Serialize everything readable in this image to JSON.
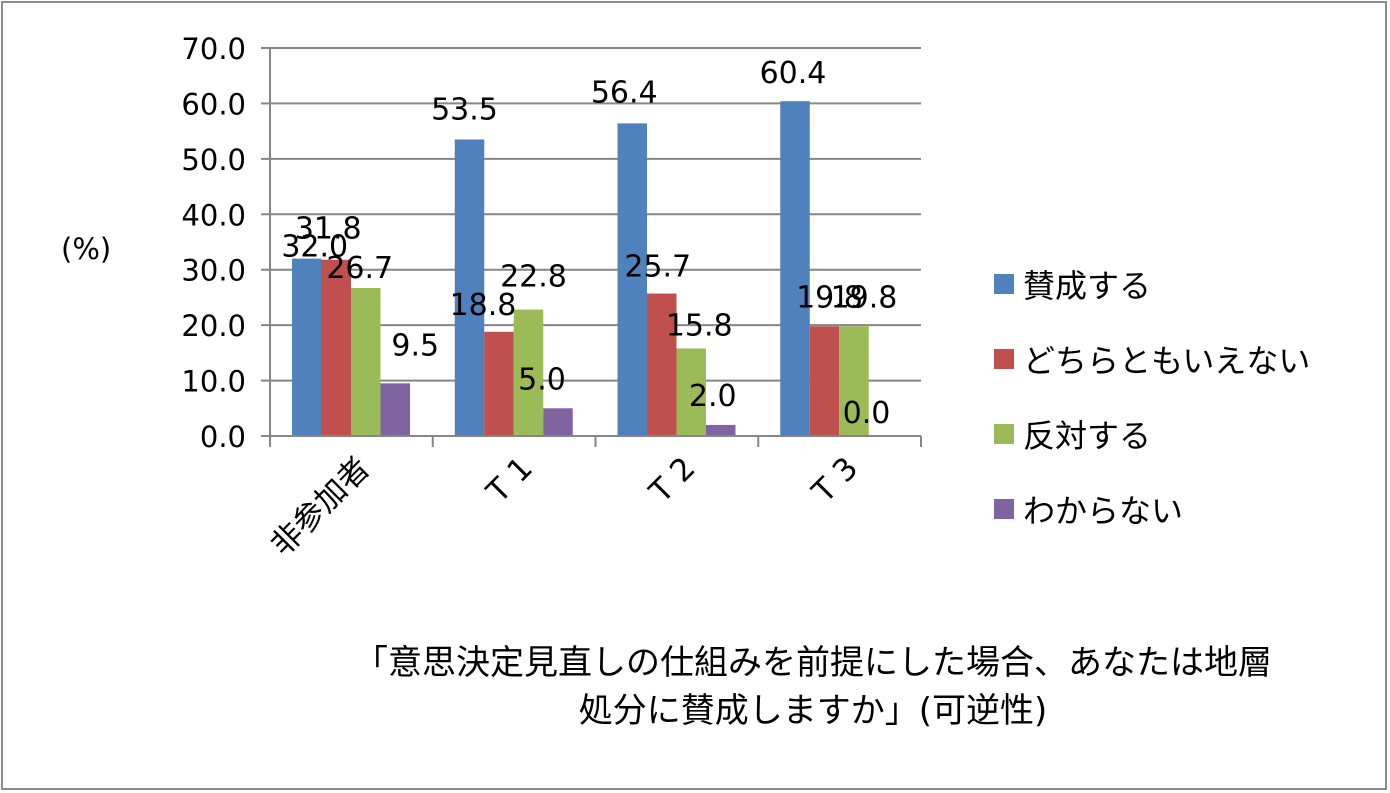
{
  "chart_data": {
    "type": "bar",
    "categories": [
      "非参加者",
      "T 1",
      "T 2",
      "T 3"
    ],
    "series": [
      {
        "name": "賛成する",
        "color": "#4F81BD",
        "values": [
          32.0,
          53.5,
          56.4,
          60.4
        ],
        "labels": [
          "32.0",
          "53.5",
          "56.4",
          "60.4"
        ]
      },
      {
        "name": "どちらともいえない",
        "color": "#C0504D",
        "values": [
          31.8,
          18.8,
          25.7,
          19.8
        ],
        "labels": [
          "31.8",
          "18.8",
          "25.7",
          "19.8"
        ]
      },
      {
        "name": "反対する",
        "color": "#9BBB59",
        "values": [
          26.7,
          22.8,
          15.8,
          19.8
        ],
        "labels": [
          "26.7",
          "22.8",
          "15.8",
          "19.8"
        ]
      },
      {
        "name": "わからない",
        "color": "#8064A2",
        "values": [
          9.5,
          5.0,
          2.0,
          0.0
        ],
        "labels": [
          "9.5",
          "5.0",
          "2.0",
          "0.0"
        ]
      }
    ],
    "ylim": [
      0,
      70
    ],
    "yticks": [
      "0.0",
      "10.0",
      "20.0",
      "30.0",
      "40.0",
      "50.0",
      "60.0",
      "70.0"
    ],
    "ylabel": "(%)",
    "grid": true,
    "legend_position": "right",
    "caption_lines": [
      "「意思決定見直しの仕組みを前提にした場合、あなたは地層",
      "処分に賛成しますか」(可逆性)"
    ]
  }
}
